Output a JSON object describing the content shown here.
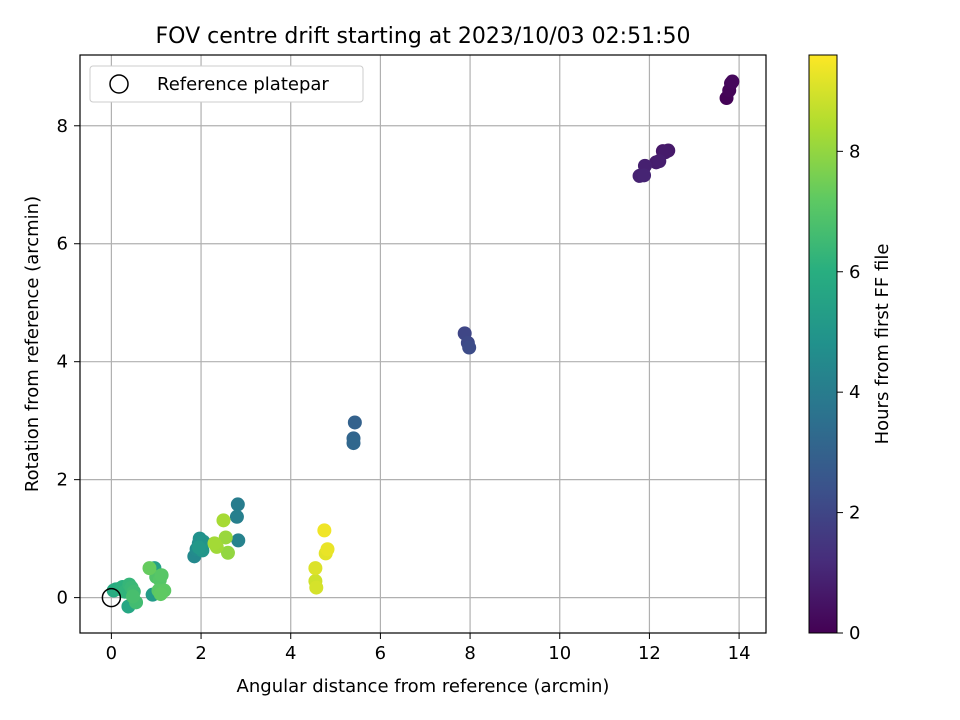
{
  "chart_data": {
    "type": "scatter",
    "title": "FOV centre drift starting at 2023/10/03 02:51:50",
    "xlabel": "Angular distance from reference (arcmin)",
    "ylabel": "Rotation from reference (arcmin)",
    "xlim": [
      -0.7,
      14.6
    ],
    "ylim": [
      -0.6,
      9.2
    ],
    "xticks": [
      0,
      2,
      4,
      6,
      8,
      10,
      12,
      14
    ],
    "yticks": [
      0,
      2,
      4,
      6,
      8
    ],
    "grid": true,
    "legend": {
      "placement": "upper-left",
      "entries": [
        "Reference platepar"
      ]
    },
    "reference_point": {
      "x": 0,
      "y": 0,
      "label": "Reference platepar"
    },
    "colorbar": {
      "label": "Hours from first FF file",
      "colormap": "viridis",
      "range": [
        0,
        9.6
      ],
      "ticks": [
        0,
        2,
        4,
        6,
        8
      ]
    },
    "points": [
      {
        "x": 13.72,
        "y": 8.47,
        "c": 0.05
      },
      {
        "x": 13.78,
        "y": 8.6,
        "c": 0.1
      },
      {
        "x": 13.82,
        "y": 8.72,
        "c": 0.15
      },
      {
        "x": 13.85,
        "y": 8.75,
        "c": 0.2
      },
      {
        "x": 12.3,
        "y": 7.57,
        "c": 0.6
      },
      {
        "x": 12.42,
        "y": 7.58,
        "c": 0.65
      },
      {
        "x": 12.35,
        "y": 7.55,
        "c": 0.7
      },
      {
        "x": 12.15,
        "y": 7.38,
        "c": 0.75
      },
      {
        "x": 12.22,
        "y": 7.4,
        "c": 0.8
      },
      {
        "x": 11.9,
        "y": 7.32,
        "c": 0.85
      },
      {
        "x": 11.78,
        "y": 7.15,
        "c": 0.9
      },
      {
        "x": 11.88,
        "y": 7.16,
        "c": 0.95
      },
      {
        "x": 7.88,
        "y": 4.48,
        "c": 2.0
      },
      {
        "x": 7.95,
        "y": 4.32,
        "c": 2.1
      },
      {
        "x": 7.98,
        "y": 4.24,
        "c": 2.2
      },
      {
        "x": 5.43,
        "y": 2.97,
        "c": 3.0
      },
      {
        "x": 5.4,
        "y": 2.7,
        "c": 3.1
      },
      {
        "x": 5.4,
        "y": 2.62,
        "c": 3.2
      },
      {
        "x": 2.82,
        "y": 1.58,
        "c": 4.0
      },
      {
        "x": 2.8,
        "y": 1.37,
        "c": 4.1
      },
      {
        "x": 2.83,
        "y": 0.97,
        "c": 4.2
      },
      {
        "x": 1.85,
        "y": 0.7,
        "c": 4.5
      },
      {
        "x": 1.9,
        "y": 0.82,
        "c": 4.6
      },
      {
        "x": 1.95,
        "y": 0.92,
        "c": 4.7
      },
      {
        "x": 1.97,
        "y": 1.0,
        "c": 4.8
      },
      {
        "x": 2.05,
        "y": 0.95,
        "c": 4.9
      },
      {
        "x": 2.03,
        "y": 0.8,
        "c": 5.0
      },
      {
        "x": 1.95,
        "y": 0.85,
        "c": 5.1
      },
      {
        "x": 0.92,
        "y": 0.05,
        "c": 5.2
      },
      {
        "x": 0.96,
        "y": 0.5,
        "c": 5.4
      },
      {
        "x": 0.38,
        "y": -0.15,
        "c": 5.7
      },
      {
        "x": 0.05,
        "y": 0.12,
        "c": 5.8
      },
      {
        "x": 0.1,
        "y": 0.14,
        "c": 5.9
      },
      {
        "x": 0.18,
        "y": 0.15,
        "c": 6.0
      },
      {
        "x": 0.25,
        "y": 0.18,
        "c": 6.1
      },
      {
        "x": 0.3,
        "y": 0.1,
        "c": 6.2
      },
      {
        "x": 0.4,
        "y": 0.22,
        "c": 6.3
      },
      {
        "x": 0.45,
        "y": 0.17,
        "c": 6.4
      },
      {
        "x": 0.5,
        "y": 0.1,
        "c": 6.5
      },
      {
        "x": 0.55,
        "y": -0.08,
        "c": 6.6
      },
      {
        "x": 0.48,
        "y": 0.02,
        "c": 6.7
      },
      {
        "x": 1.0,
        "y": 0.35,
        "c": 6.9
      },
      {
        "x": 1.08,
        "y": 0.3,
        "c": 7.0
      },
      {
        "x": 1.12,
        "y": 0.38,
        "c": 7.05
      },
      {
        "x": 1.05,
        "y": 0.12,
        "c": 7.1
      },
      {
        "x": 1.18,
        "y": 0.12,
        "c": 7.15
      },
      {
        "x": 1.1,
        "y": 0.06,
        "c": 7.2
      },
      {
        "x": 0.85,
        "y": 0.5,
        "c": 7.3
      },
      {
        "x": 2.6,
        "y": 0.76,
        "c": 8.0
      },
      {
        "x": 2.55,
        "y": 1.02,
        "c": 8.1
      },
      {
        "x": 2.35,
        "y": 0.86,
        "c": 8.2
      },
      {
        "x": 2.3,
        "y": 0.92,
        "c": 8.25
      },
      {
        "x": 2.5,
        "y": 1.31,
        "c": 8.3
      },
      {
        "x": 4.55,
        "y": 0.28,
        "c": 8.9
      },
      {
        "x": 4.57,
        "y": 0.17,
        "c": 9.0
      },
      {
        "x": 4.55,
        "y": 0.5,
        "c": 9.1
      },
      {
        "x": 4.78,
        "y": 0.75,
        "c": 9.2
      },
      {
        "x": 4.82,
        "y": 0.82,
        "c": 9.3
      },
      {
        "x": 4.75,
        "y": 1.14,
        "c": 9.4
      }
    ]
  }
}
